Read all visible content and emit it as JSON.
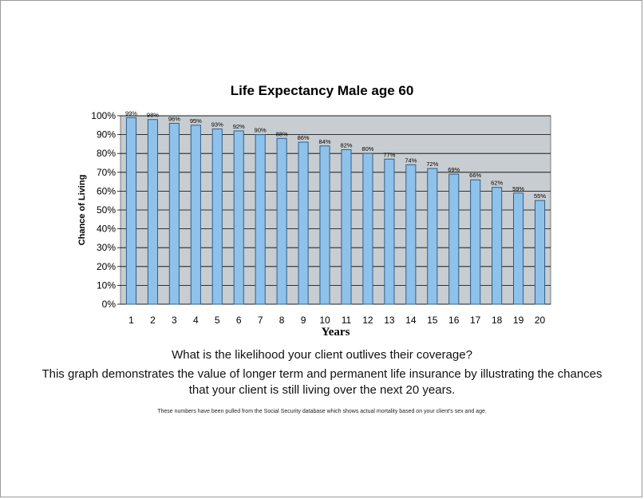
{
  "chart_data": {
    "type": "bar",
    "title": "Life Expectancy Male age 60",
    "xlabel": "Years",
    "ylabel": "Chance of Living",
    "categories": [
      "1",
      "2",
      "3",
      "4",
      "5",
      "6",
      "7",
      "8",
      "9",
      "10",
      "11",
      "12",
      "13",
      "14",
      "15",
      "16",
      "17",
      "18",
      "19",
      "20"
    ],
    "values": [
      99,
      98,
      96,
      95,
      93,
      92,
      90,
      88,
      86,
      84,
      82,
      80,
      77,
      74,
      72,
      69,
      66,
      62,
      59,
      55
    ],
    "data_labels": [
      "99%",
      "98%",
      "96%",
      "95%",
      "93%",
      "92%",
      "90%",
      "88%",
      "86%",
      "84%",
      "82%",
      "80%",
      "77%",
      "74%",
      "72%",
      "69%",
      "66%",
      "62%",
      "59%",
      "55%"
    ],
    "y_ticks": [
      "0%",
      "10%",
      "20%",
      "30%",
      "40%",
      "50%",
      "60%",
      "70%",
      "80%",
      "90%",
      "100%"
    ],
    "ylim": [
      0,
      100
    ],
    "grid": true,
    "legend": "none",
    "colors": {
      "bar_fill": "#8fc2ea",
      "bar_edge": "#2f5f8a",
      "plot_background": "#c8cdd1",
      "gridline": "#000000"
    }
  },
  "text": {
    "question": "What is the likelihood your client outlives their coverage?",
    "description": "This graph demonstrates  the value of longer term and permanent life insurance by illustrating the chances that your client is still living  over the next  20 years.",
    "footnote": "These numbers have been pulled from the Social Security database which shows actual mortality based on your client's sex and age."
  }
}
